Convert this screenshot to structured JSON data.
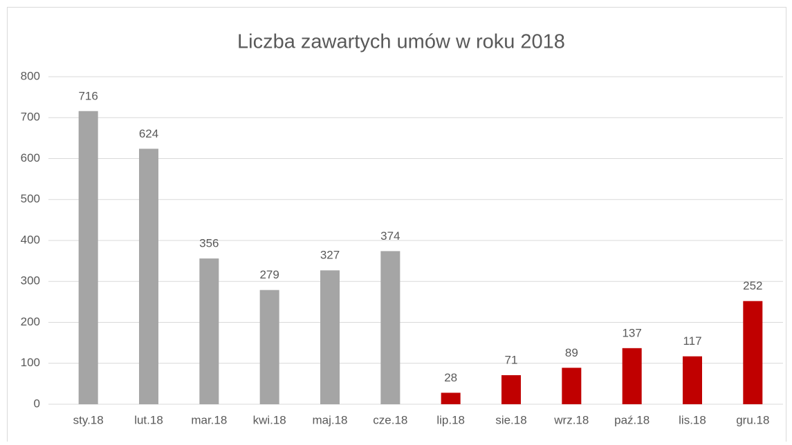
{
  "chart_data": {
    "type": "bar",
    "title": "Liczba zawartych umów  w roku 2018",
    "categories": [
      "sty.18",
      "lut.18",
      "mar.18",
      "kwi.18",
      "maj.18",
      "cze.18",
      "lip.18",
      "sie.18",
      "wrz.18",
      "paź.18",
      "lis.18",
      "gru.18"
    ],
    "values": [
      716,
      624,
      356,
      279,
      327,
      374,
      28,
      71,
      89,
      137,
      117,
      252
    ],
    "colors": [
      "#a5a5a5",
      "#a5a5a5",
      "#a5a5a5",
      "#a5a5a5",
      "#a5a5a5",
      "#a5a5a5",
      "#c00000",
      "#c00000",
      "#c00000",
      "#c00000",
      "#c00000",
      "#c00000"
    ],
    "ylim": [
      0,
      800
    ],
    "yticks": [
      0,
      100,
      200,
      300,
      400,
      500,
      600,
      700,
      800
    ],
    "grid": true
  }
}
